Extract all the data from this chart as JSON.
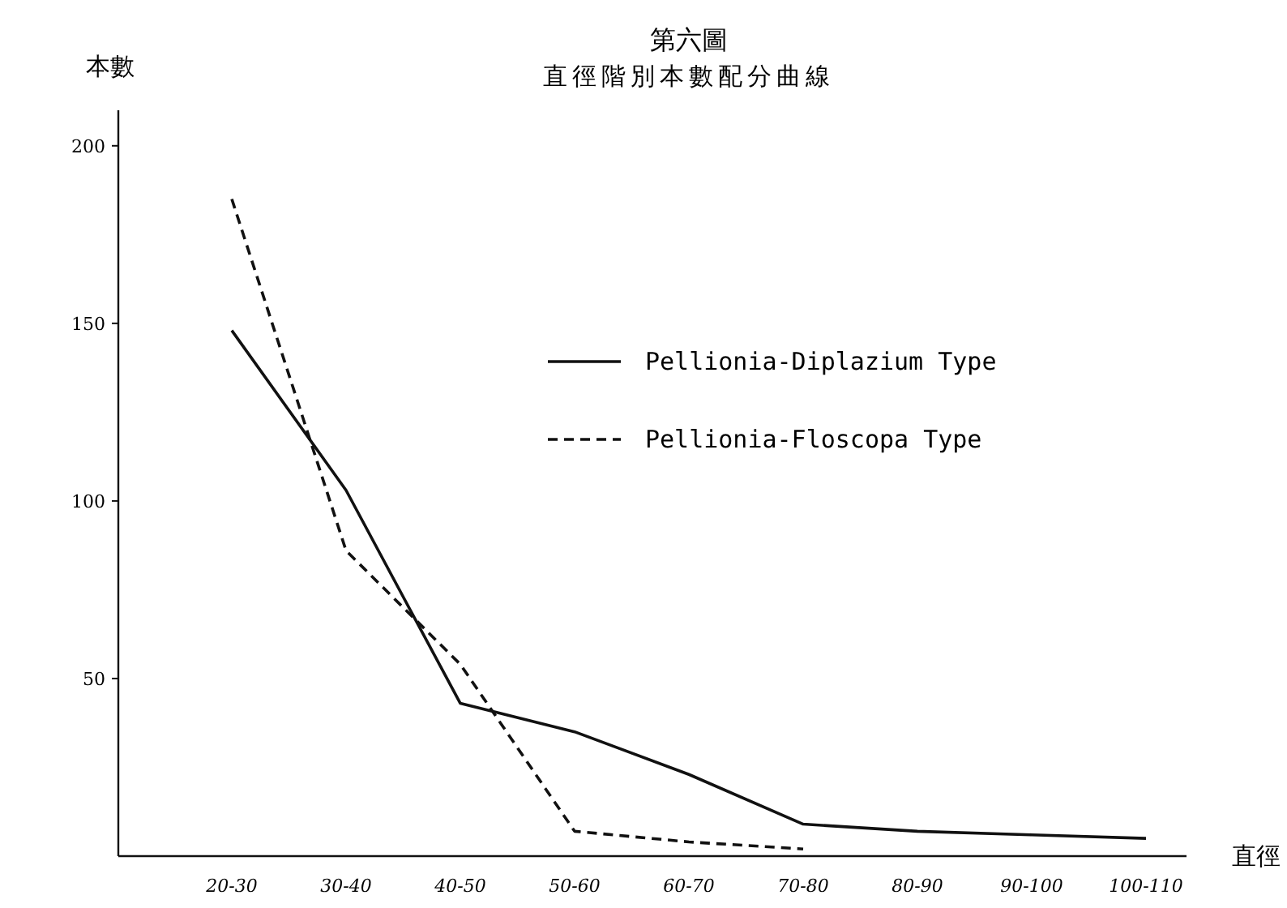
{
  "chart_data": {
    "type": "line",
    "title": "第六圖",
    "subtitle": "直徑階別本數配分曲線",
    "xlabel": "直徑",
    "ylabel": "本數",
    "categories": [
      "20-30",
      "30-40",
      "40-50",
      "50-60",
      "60-70",
      "70-80",
      "80-90",
      "90-100",
      "100-110"
    ],
    "series": [
      {
        "name": "Pellionia-Diplazium Type",
        "color": "#111111",
        "line_style": "solid",
        "values": [
          148,
          103,
          43,
          35,
          23,
          9,
          7,
          6,
          5
        ]
      },
      {
        "name": "Pellionia-Floscopa Type",
        "color": "#111111",
        "line_style": "dashed",
        "values": [
          185,
          86,
          54,
          7,
          4,
          2,
          null,
          null,
          null
        ]
      }
    ],
    "ylim": [
      0,
      210
    ],
    "yticks": [
      50,
      100,
      150,
      200
    ],
    "grid": false,
    "legend": "right",
    "marker": "none"
  }
}
